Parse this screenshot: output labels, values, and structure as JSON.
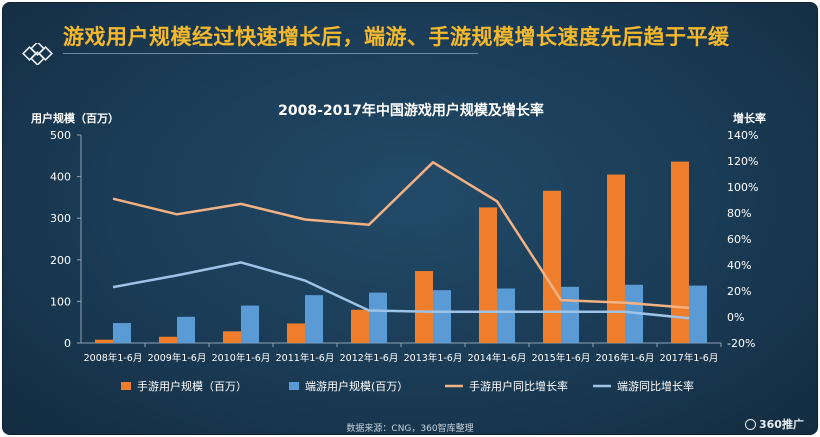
{
  "headline": "游戏用户规模经过快速增长后，端游、手游规模增长速度先后趋于平缓",
  "source_note": "数据来源：CNG，360智库整理",
  "brand": "360推广",
  "colors": {
    "mobile_bar": "#ee7d2c",
    "pc_bar": "#5b9bd5",
    "mobile_line": "#f4b183",
    "pc_line": "#9dc3e6",
    "headline": "#f6b92b"
  },
  "chart_data": {
    "type": "bar",
    "title": "2008-2017年中国游戏用户规模及增长率",
    "ylabel": "用户规模（百万）",
    "y2label": "增长率",
    "categories": [
      "2008年1-6月",
      "2009年1-6月",
      "2010年1-6月",
      "2011年1-6月",
      "2012年1-6月",
      "2013年1-6月",
      "2014年1-6月",
      "2015年1-6月",
      "2016年1-6月",
      "2017年1-6月"
    ],
    "ylim": [
      0,
      500
    ],
    "yticks": [
      "0",
      "100",
      "200",
      "300",
      "400",
      "500"
    ],
    "y2lim": [
      -20,
      140
    ],
    "y2ticks": [
      "-20%",
      "0%",
      "20%",
      "40%",
      "60%",
      "80%",
      "100%",
      "120%",
      "140%"
    ],
    "series": [
      {
        "name": "手游用户规模（百万）",
        "type": "bar",
        "axis": "left",
        "values": [
          8,
          15,
          28,
          47,
          80,
          173,
          326,
          366,
          405,
          436
        ]
      },
      {
        "name": "端游用户规模(百万）",
        "type": "bar",
        "axis": "left",
        "values": [
          48,
          63,
          90,
          115,
          121,
          127,
          131,
          135,
          140,
          138
        ]
      },
      {
        "name": "手游用户同比增长率",
        "type": "line",
        "axis": "right",
        "values": [
          91,
          79,
          87,
          75,
          71,
          119,
          89,
          13,
          11,
          7
        ]
      },
      {
        "name": "端游同比增长率",
        "type": "line",
        "axis": "right",
        "values": [
          23,
          32,
          42,
          28,
          5,
          4,
          4,
          4,
          4,
          -1
        ]
      }
    ],
    "legend_position": "bottom",
    "grid": false
  }
}
